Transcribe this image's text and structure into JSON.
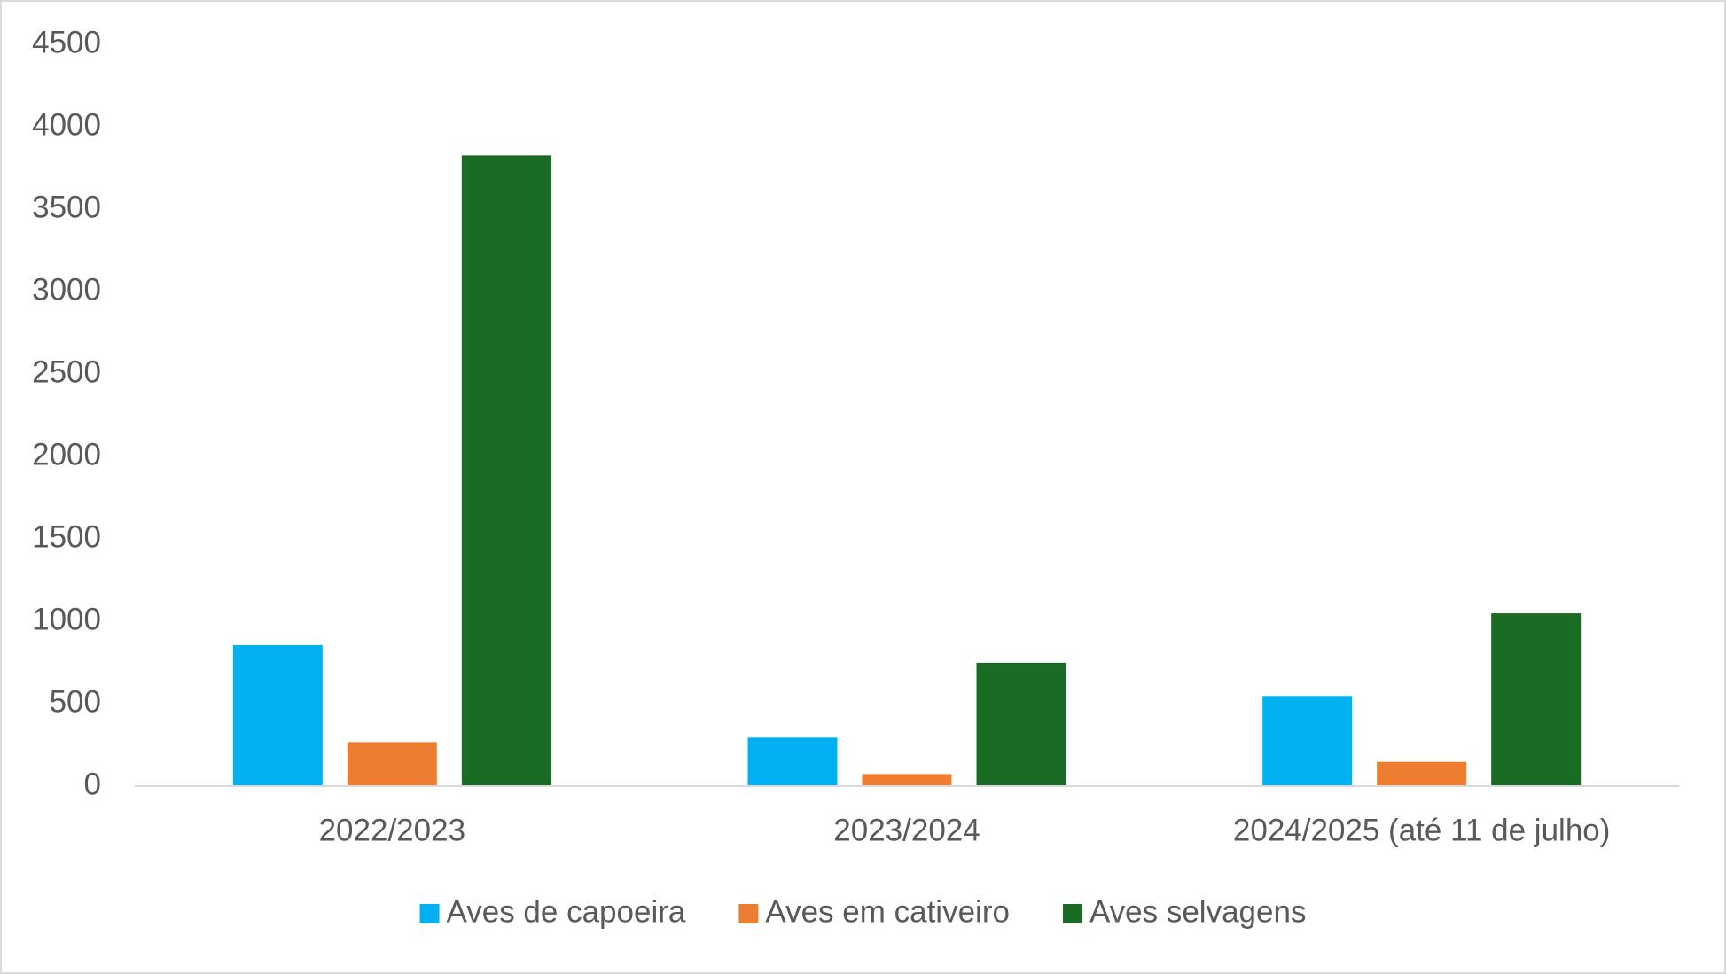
{
  "chart_data": {
    "type": "bar",
    "categories": [
      "2022/2023",
      "2023/2024",
      "2024/2025 (até 11 de julho)"
    ],
    "series": [
      {
        "name": "Aves de capoeira",
        "color": "#00b0f0",
        "values": [
          855,
          294,
          547
        ]
      },
      {
        "name": "Aves em cativeiro",
        "color": "#ed7d31",
        "values": [
          267,
          73,
          147
        ]
      },
      {
        "name": "Aves selvagens",
        "color": "#1a6b24",
        "values": [
          3826,
          748,
          1048
        ]
      }
    ],
    "ylim": [
      0,
      4500
    ],
    "yticks": [
      0,
      500,
      1000,
      1500,
      2000,
      2500,
      3000,
      3500,
      4000,
      4500
    ],
    "grid": false,
    "legend": "bottom"
  }
}
